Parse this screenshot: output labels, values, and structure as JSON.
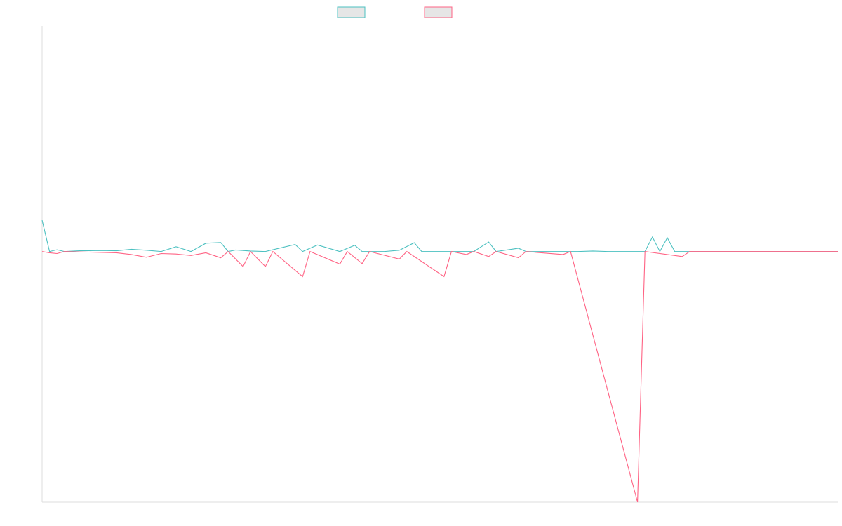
{
  "chart_data": {
    "type": "line",
    "title": "",
    "xlabel": "",
    "ylabel": "",
    "grid": false,
    "legend_position": "top-center",
    "legend": [
      {
        "color": "#4bc0c0",
        "fill": "#e6e6e6"
      },
      {
        "color": "#ff6384",
        "fill": "#e6e6e6"
      }
    ],
    "ylim": [
      -100,
      90
    ],
    "x_count": 108,
    "series": [
      {
        "color": "#4bc0c0",
        "points": [
          [
            0,
            12.5
          ],
          [
            1,
            0
          ],
          [
            2,
            0.7
          ],
          [
            3,
            0
          ],
          [
            5,
            0.3
          ],
          [
            8,
            0.4
          ],
          [
            10,
            0.3
          ],
          [
            12,
            0.9
          ],
          [
            14,
            0.5
          ],
          [
            16,
            0
          ],
          [
            18,
            1.9
          ],
          [
            20,
            0
          ],
          [
            22,
            3.3
          ],
          [
            24,
            3.6
          ],
          [
            25,
            0
          ],
          [
            26,
            0.6
          ],
          [
            28,
            0.2
          ],
          [
            30,
            0
          ],
          [
            34,
            2.8
          ],
          [
            35,
            0
          ],
          [
            37,
            2.6
          ],
          [
            40,
            0
          ],
          [
            42,
            2.5
          ],
          [
            43,
            0
          ],
          [
            44,
            0
          ],
          [
            46,
            0
          ],
          [
            48,
            0.5
          ],
          [
            50,
            3.5
          ],
          [
            51,
            0
          ],
          [
            52,
            0
          ],
          [
            54,
            0
          ],
          [
            58,
            0
          ],
          [
            60,
            3.8
          ],
          [
            61,
            0
          ],
          [
            64,
            1.3
          ],
          [
            65,
            0
          ],
          [
            66,
            0
          ],
          [
            68,
            0
          ],
          [
            70,
            0
          ],
          [
            72,
            0
          ],
          [
            74,
            0.2
          ],
          [
            76,
            0
          ],
          [
            79,
            0
          ],
          [
            81,
            0
          ],
          [
            82,
            5.8
          ],
          [
            83,
            0
          ],
          [
            84,
            5.5
          ],
          [
            85,
            0
          ],
          [
            86,
            0
          ],
          [
            88,
            0
          ],
          [
            90,
            0
          ],
          [
            92,
            0
          ],
          [
            94,
            0
          ],
          [
            96,
            0
          ],
          [
            98,
            0
          ],
          [
            100,
            0
          ],
          [
            102,
            0
          ],
          [
            104,
            0
          ],
          [
            106,
            0
          ],
          [
            107,
            0
          ]
        ]
      },
      {
        "color": "#ff6384",
        "points": [
          [
            0,
            0
          ],
          [
            1,
            -0.5
          ],
          [
            2,
            -0.8
          ],
          [
            3,
            0
          ],
          [
            10,
            -0.5
          ],
          [
            12,
            -1.2
          ],
          [
            14,
            -2.3
          ],
          [
            16,
            -0.8
          ],
          [
            18,
            -1
          ],
          [
            20,
            -1.6
          ],
          [
            22,
            -0.5
          ],
          [
            24,
            -2.5
          ],
          [
            25,
            0
          ],
          [
            27,
            -6
          ],
          [
            28,
            0
          ],
          [
            30,
            -6
          ],
          [
            31,
            0
          ],
          [
            35,
            -10
          ],
          [
            36,
            0
          ],
          [
            40,
            -5
          ],
          [
            41,
            0
          ],
          [
            43,
            -4.8
          ],
          [
            44,
            0
          ],
          [
            48,
            -3
          ],
          [
            49,
            0
          ],
          [
            54,
            -10
          ],
          [
            55,
            0
          ],
          [
            57,
            -1.2
          ],
          [
            58,
            0
          ],
          [
            60,
            -2
          ],
          [
            61,
            0
          ],
          [
            64,
            -2.5
          ],
          [
            65,
            0
          ],
          [
            70,
            -1.2
          ],
          [
            71,
            0
          ],
          [
            80,
            -100
          ],
          [
            81,
            0
          ],
          [
            86,
            -2
          ],
          [
            87,
            0
          ],
          [
            107,
            0
          ]
        ]
      }
    ]
  }
}
